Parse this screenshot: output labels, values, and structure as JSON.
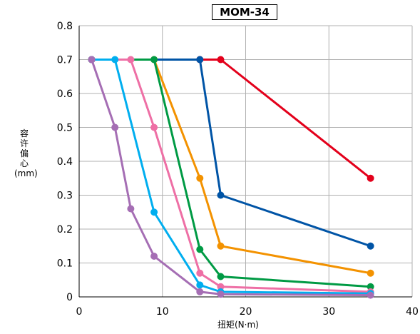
{
  "chart_data": {
    "type": "line",
    "title": "MOM-34",
    "xlabel": "扭矩(N·m)",
    "ylabel_chars": [
      "容",
      "许",
      "偏",
      "心",
      "(mm)"
    ],
    "xlim": [
      0,
      40
    ],
    "ylim": [
      0,
      0.8
    ],
    "x_ticks": [
      "0",
      "10",
      "20",
      "30",
      "40"
    ],
    "y_ticks": [
      "0",
      "0.1",
      "0.2",
      "0.3",
      "0.4",
      "0.5",
      "0.6",
      "0.7",
      "0.8"
    ],
    "grid": true,
    "series": [
      {
        "color": "#e3001b",
        "points": [
          [
            1.5,
            0.7
          ],
          [
            14.5,
            0.7
          ],
          [
            17,
            0.7
          ],
          [
            35,
            0.35
          ]
        ]
      },
      {
        "color": "#0054a6",
        "points": [
          [
            1.5,
            0.7
          ],
          [
            14.5,
            0.7
          ],
          [
            17,
            0.3
          ],
          [
            35,
            0.15
          ]
        ]
      },
      {
        "color": "#f39200",
        "points": [
          [
            1.5,
            0.7
          ],
          [
            9,
            0.7
          ],
          [
            14.5,
            0.35
          ],
          [
            17,
            0.15
          ],
          [
            35,
            0.07
          ]
        ]
      },
      {
        "color": "#009a44",
        "points": [
          [
            1.5,
            0.7
          ],
          [
            9,
            0.7
          ],
          [
            14.5,
            0.14
          ],
          [
            17,
            0.06
          ],
          [
            35,
            0.03
          ]
        ]
      },
      {
        "color": "#ee6fa5",
        "points": [
          [
            1.5,
            0.7
          ],
          [
            6.2,
            0.7
          ],
          [
            9,
            0.5
          ],
          [
            14.5,
            0.07
          ],
          [
            17,
            0.03
          ],
          [
            35,
            0.015
          ]
        ]
      },
      {
        "color": "#00aeef",
        "points": [
          [
            1.5,
            0.7
          ],
          [
            4.3,
            0.7
          ],
          [
            9,
            0.25
          ],
          [
            14.5,
            0.035
          ],
          [
            17,
            0.015
          ],
          [
            35,
            0.01
          ]
        ]
      },
      {
        "color": "#a56eb4",
        "points": [
          [
            1.5,
            0.7
          ],
          [
            4.3,
            0.5
          ],
          [
            6.2,
            0.26
          ],
          [
            9,
            0.12
          ],
          [
            14.5,
            0.015
          ],
          [
            17,
            0.008
          ],
          [
            35,
            0.005
          ]
        ]
      }
    ]
  }
}
